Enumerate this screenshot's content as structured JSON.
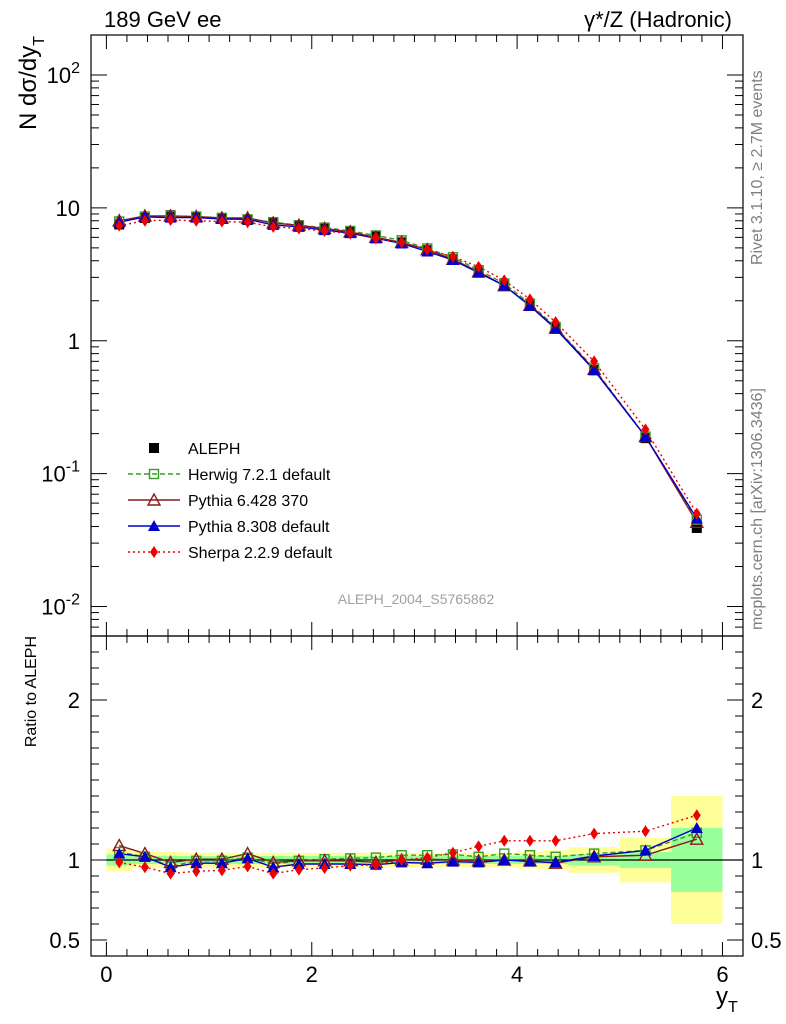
{
  "header": {
    "left": "189 GeV ee",
    "right": "γ*/Z (Hadronic)"
  },
  "side_labels": {
    "top": "Rivet 3.1.10, ≥ 2.7M events",
    "bottom": "mcplots.cern.ch [arXiv:1306.3436]"
  },
  "watermark": "ALEPH_2004_S5765862",
  "colors": {
    "data": "#000000",
    "herwig": "#3a9a2a",
    "pythia6": "#8b1a1a",
    "pythia8": "#0000cc",
    "sherpa": "#ee0000",
    "band_inner": "#99ff99",
    "band_outer": "#ffff99"
  },
  "chart_data": {
    "type": "line",
    "x": [
      0.125,
      0.375,
      0.625,
      0.875,
      1.125,
      1.375,
      1.625,
      1.875,
      2.125,
      2.375,
      2.625,
      2.875,
      3.125,
      3.375,
      3.625,
      3.875,
      4.125,
      4.375,
      4.75,
      5.25,
      5.75
    ],
    "bin_edges": [
      0,
      0.25,
      0.5,
      0.75,
      1.0,
      1.25,
      1.5,
      1.75,
      2.0,
      2.25,
      2.5,
      2.75,
      3.0,
      3.25,
      3.5,
      3.75,
      4.0,
      4.25,
      4.5,
      5.0,
      5.5,
      6.0
    ],
    "xlabel": "y",
    "xlabel_sub": "T",
    "xlim": [
      -0.15,
      6.2
    ],
    "xticks": [
      0,
      2,
      4,
      6
    ],
    "main": {
      "ylabel": "N dσ/dy",
      "ylabel_sub": "T",
      "yscale": "log",
      "ylim": [
        0.006,
        200
      ],
      "yticks": [
        {
          "v": 0.01,
          "b": "10",
          "e": "-2"
        },
        {
          "v": 0.1,
          "b": "10",
          "e": "-1"
        },
        {
          "v": 1,
          "b": "1",
          "e": ""
        },
        {
          "v": 10,
          "b": "10",
          "e": ""
        },
        {
          "v": 100,
          "b": "10",
          "e": "2"
        }
      ],
      "series": [
        {
          "key": "data",
          "name": "ALEPH",
          "values": [
            7.5,
            8.4,
            8.8,
            8.6,
            8.4,
            8.1,
            7.8,
            7.4,
            7.0,
            6.6,
            6.1,
            5.5,
            4.8,
            4.1,
            3.3,
            2.6,
            1.85,
            1.25,
            0.6,
            0.185,
            0.039
          ]
        },
        {
          "key": "herwig",
          "name": "Herwig 7.2.1 default",
          "values": [
            7.9,
            8.6,
            8.7,
            8.6,
            8.4,
            8.2,
            7.8,
            7.4,
            7.1,
            6.7,
            6.2,
            5.7,
            4.95,
            4.25,
            3.4,
            2.7,
            1.9,
            1.27,
            0.62,
            0.19,
            0.045
          ]
        },
        {
          "key": "pythia6",
          "name": "Pythia 6.428 370",
          "values": [
            8.0,
            8.7,
            8.7,
            8.6,
            8.4,
            8.4,
            7.7,
            7.4,
            7.0,
            6.6,
            6.0,
            5.5,
            4.85,
            4.1,
            3.3,
            2.6,
            1.85,
            1.25,
            0.61,
            0.19,
            0.043
          ]
        },
        {
          "key": "pythia8",
          "name": "Pythia 8.308 default",
          "values": [
            7.8,
            8.55,
            8.45,
            8.45,
            8.25,
            8.2,
            7.45,
            7.2,
            6.8,
            6.45,
            5.9,
            5.4,
            4.7,
            4.05,
            3.25,
            2.6,
            1.83,
            1.23,
            0.6,
            0.19,
            0.046
          ]
        },
        {
          "key": "sherpa",
          "name": "Sherpa 2.2.9 default",
          "values": [
            7.35,
            8.0,
            8.1,
            8.0,
            7.9,
            7.8,
            7.2,
            7.0,
            6.7,
            6.4,
            5.9,
            5.5,
            4.85,
            4.3,
            3.6,
            2.85,
            2.05,
            1.38,
            0.7,
            0.215,
            0.05
          ]
        }
      ]
    },
    "ratio": {
      "ylabel": "Ratio to ALEPH",
      "ylim": [
        0.4,
        2.4
      ],
      "yticks": [
        {
          "v": 0.5,
          "label": "0.5"
        },
        {
          "v": 1,
          "label": "1"
        },
        {
          "v": 2,
          "label": "2"
        }
      ],
      "band_inner": [
        0.035,
        0.025,
        0.025,
        0.025,
        0.025,
        0.025,
        0.025,
        0.025,
        0.025,
        0.025,
        0.025,
        0.025,
        0.025,
        0.025,
        0.025,
        0.025,
        0.025,
        0.025,
        0.035,
        0.05,
        0.2
      ],
      "band_outer": [
        0.07,
        0.05,
        0.05,
        0.045,
        0.045,
        0.045,
        0.045,
        0.045,
        0.045,
        0.045,
        0.045,
        0.045,
        0.045,
        0.045,
        0.045,
        0.045,
        0.055,
        0.06,
        0.08,
        0.14,
        0.4
      ],
      "series": [
        {
          "key": "herwig",
          "values": [
            1.05,
            1.02,
            0.96,
            0.995,
            0.995,
            1.015,
            0.975,
            0.995,
            1.005,
            1.01,
            1.015,
            1.03,
            1.03,
            1.035,
            1.02,
            1.04,
            1.03,
            1.02,
            1.04,
            1.06,
            1.17
          ]
        },
        {
          "key": "pythia6",
          "values": [
            1.09,
            1.04,
            0.985,
            1.005,
            1.005,
            1.04,
            0.985,
            0.995,
            0.995,
            0.995,
            0.985,
            1.0,
            1.005,
            1.0,
            0.995,
            1.0,
            0.995,
            0.98,
            1.02,
            1.03,
            1.13
          ]
        },
        {
          "key": "pythia8",
          "values": [
            1.04,
            1.02,
            0.955,
            0.98,
            0.98,
            1.01,
            0.955,
            0.975,
            0.975,
            0.975,
            0.97,
            0.985,
            0.98,
            0.99,
            0.985,
            1.0,
            0.99,
            0.985,
            1.025,
            1.06,
            1.2
          ]
        },
        {
          "key": "sherpa",
          "values": [
            0.985,
            0.955,
            0.915,
            0.93,
            0.935,
            0.96,
            0.915,
            0.94,
            0.95,
            0.965,
            0.97,
            1.0,
            1.015,
            1.045,
            1.085,
            1.12,
            1.12,
            1.12,
            1.165,
            1.18,
            1.28
          ]
        }
      ]
    }
  }
}
